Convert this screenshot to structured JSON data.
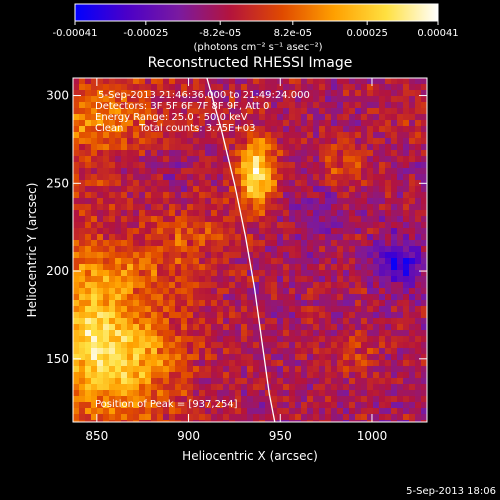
{
  "colorbar": {
    "tick_labels": [
      "-0.00041",
      "-0.00025",
      "-8.2e-05",
      "8.2e-05",
      "0.00025",
      "0.00041"
    ],
    "tick_values": [
      -0.00041,
      -0.00025,
      -8.2e-05,
      8.2e-05,
      0.00025,
      0.00041
    ],
    "range": [
      -0.00041,
      0.00041
    ],
    "unit_label": "(photons cm⁻² s⁻¹ asec⁻²)",
    "colormap_stops": [
      "#0000ff",
      "#4b00c8",
      "#7a1aa0",
      "#b4143c",
      "#e04a00",
      "#ffa000",
      "#ffe040",
      "#ffffff"
    ]
  },
  "chart_data": {
    "type": "heatmap",
    "title": "Reconstructed RHESSI Image",
    "xlabel": "Heliocentric X (arcsec)",
    "ylabel": "Heliocentric Y (arcsec)",
    "xlim": [
      837,
      1030
    ],
    "ylim": [
      114,
      310
    ],
    "x_ticks": [
      850,
      900,
      950,
      1000
    ],
    "y_ticks": [
      150,
      200,
      250,
      300
    ],
    "annotations": [
      "5-Sep-2013 21:46:36.000 to 21:49:24.000",
      "Detectors: 3F 5F 6F 7F 8F 9F, Att 0",
      "Energy Range: 25.0 - 50.0 keV",
      "Clean     Total counts: 3.75E+03"
    ],
    "peak_label": "Position of Peak = [937,254]",
    "peak": [
      937,
      254
    ],
    "limb_curve": {
      "x": [
        910,
        918,
        925,
        931,
        936,
        940,
        944,
        947
      ],
      "y": [
        310,
        280,
        250,
        220,
        190,
        160,
        130,
        114
      ]
    },
    "sources": [
      {
        "x": 937,
        "y": 256,
        "sx": 7,
        "sy": 14,
        "amp": 0.00041
      },
      {
        "x": 860,
        "y": 150,
        "sx": 22,
        "sy": 22,
        "amp": 0.00031
      },
      {
        "x": 845,
        "y": 175,
        "sx": 10,
        "sy": 20,
        "amp": 0.00014
      },
      {
        "x": 865,
        "y": 200,
        "sx": 22,
        "sy": 12,
        "amp": 0.00012
      },
      {
        "x": 850,
        "y": 288,
        "sx": 20,
        "sy": 12,
        "amp": 0.00016
      },
      {
        "x": 905,
        "y": 220,
        "sx": 14,
        "sy": 10,
        "amp": 0.0001
      },
      {
        "x": 985,
        "y": 260,
        "sx": 10,
        "sy": 8,
        "amp": 0.00012
      },
      {
        "x": 990,
        "y": 150,
        "sx": 10,
        "sy": 10,
        "amp": 9e-05
      },
      {
        "x": 1015,
        "y": 205,
        "sx": 9,
        "sy": 10,
        "amp": -0.00025
      },
      {
        "x": 970,
        "y": 230,
        "sx": 10,
        "sy": 10,
        "amp": -9e-05
      },
      {
        "x": 890,
        "y": 255,
        "sx": 8,
        "sy": 8,
        "amp": -8e-05
      },
      {
        "x": 1020,
        "y": 290,
        "sx": 10,
        "sy": 10,
        "amp": 5e-05
      }
    ],
    "grid": false
  },
  "footer_timestamp": "5-Sep-2013 18:06"
}
